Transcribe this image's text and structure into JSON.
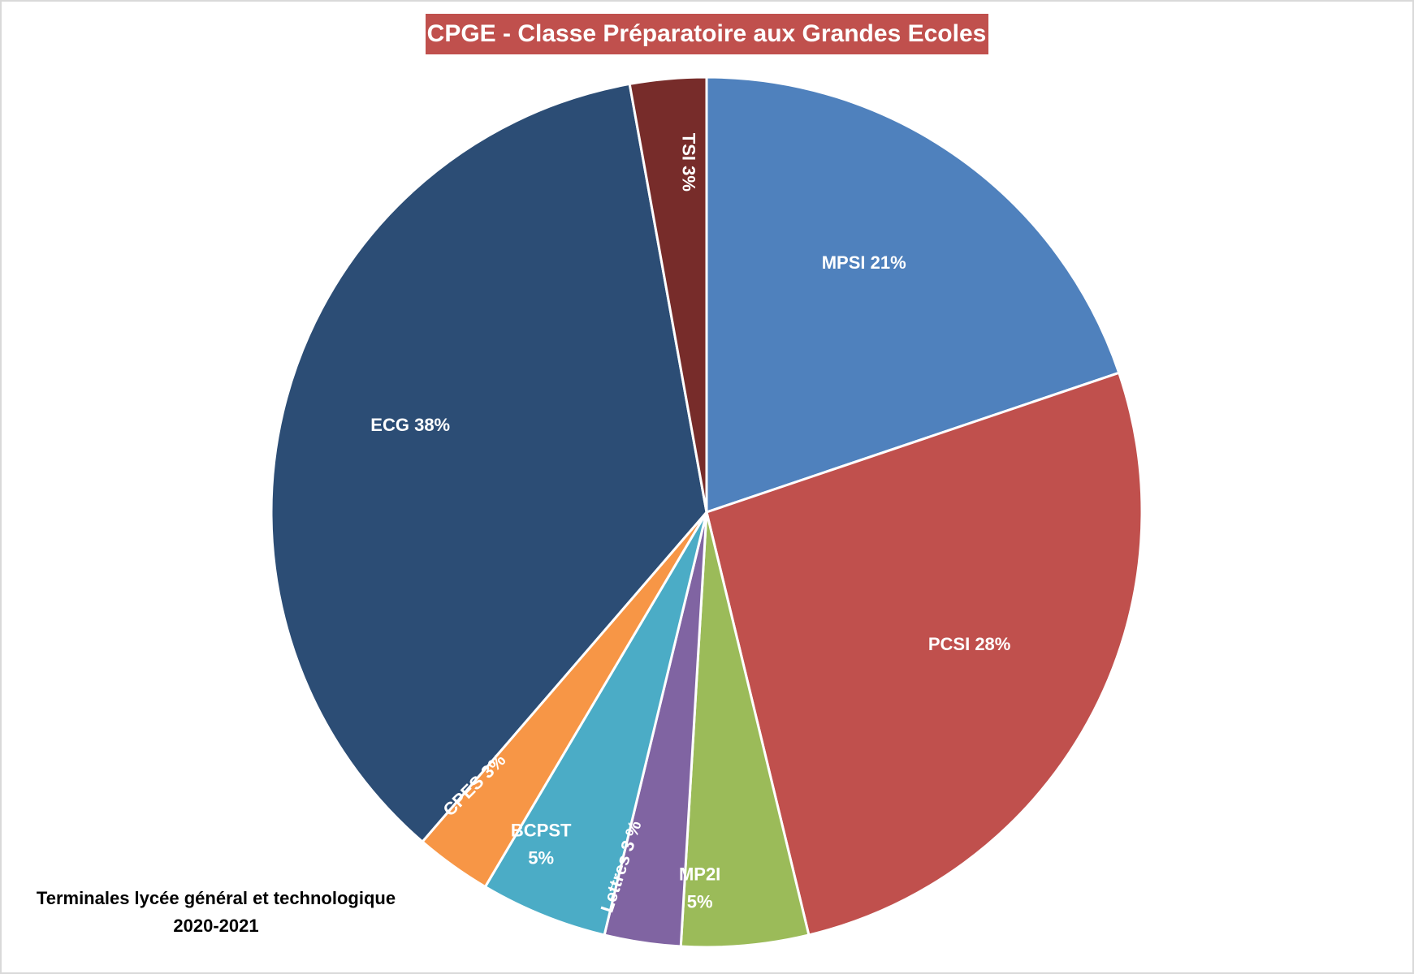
{
  "chart_data": {
    "type": "pie",
    "title": "CPGE - Classe Préparatoire aux Grandes Ecoles",
    "subtitle": [
      "Terminales lycée général et technologique",
      "2020-2021"
    ],
    "values": [
      21,
      28,
      5,
      3,
      5,
      3,
      38,
      3
    ],
    "value_labels": [
      "MPSI 21%",
      "PCSI 28%",
      [
        "MP2I",
        "5%"
      ],
      "Lettres 3 %",
      [
        "BCPST",
        "5%"
      ],
      "CPES 3%",
      "ECG 38%",
      "TSI 3%"
    ],
    "colors": [
      "#4f81bd",
      "#c0504d",
      "#9bbb59",
      "#8064a2",
      "#4bacc6",
      "#f79646",
      "#2c4d75",
      "#772c2a"
    ],
    "title_color": "#c0504d"
  }
}
